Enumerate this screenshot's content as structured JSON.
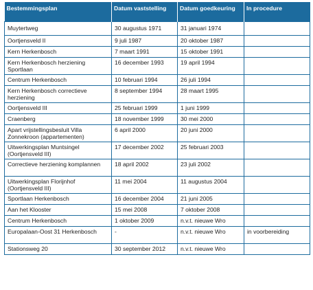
{
  "table": {
    "headers": [
      "Bestemmingsplan",
      "Datum vaststelling",
      "Datum goedkeuring",
      "In procedure"
    ],
    "rows": [
      {
        "plan": "Muytertweg",
        "vaststelling": "30 augustus 1971",
        "goedkeuring": "31 januari 1974",
        "procedure": ""
      },
      {
        "plan": "Oortjensveld II",
        "vaststelling": "9 juli 1987",
        "goedkeuring": "20 oktober 1987",
        "procedure": ""
      },
      {
        "plan": "Kern Herkenbosch",
        "vaststelling": "7 maart 1991",
        "goedkeuring": "15 oktober 1991",
        "procedure": ""
      },
      {
        "plan": "Kern Herkenbosch herziening Sportlaan",
        "vaststelling": "16 december 1993",
        "goedkeuring": "19 april 1994",
        "procedure": ""
      },
      {
        "plan": "Centrum Herkenbosch",
        "vaststelling": "10 februari 1994",
        "goedkeuring": "26 juli 1994",
        "procedure": ""
      },
      {
        "plan": "Kern Herkenbosch correctieve herziening",
        "vaststelling": "8 september 1994",
        "goedkeuring": "28 maart 1995",
        "procedure": ""
      },
      {
        "plan": "Oortjensveld III",
        "vaststelling": "25 februari 1999",
        "goedkeuring": "1 juni 1999",
        "procedure": ""
      },
      {
        "plan": "Craenberg",
        "vaststelling": "18 november 1999",
        "goedkeuring": "30 mei 2000",
        "procedure": ""
      },
      {
        "plan": "Apart vrijstellingsbesluit Villa Zonnekroon (appartementen)",
        "vaststelling": "6 april 2000",
        "goedkeuring": "20 juni 2000",
        "procedure": ""
      },
      {
        "plan": "Uitwerkingsplan Muntsingel (Oortjensveld III)",
        "vaststelling": "17 december 2002",
        "goedkeuring": "25 februari 2003",
        "procedure": ""
      },
      {
        "plan": "Correctieve herziening komplannen",
        "vaststelling": "18 april 2002",
        "goedkeuring": "23 juli 2002",
        "procedure": ""
      },
      {
        "plan": "Uitwerkingsplan Florijnhof (Oortjensveld III)",
        "vaststelling": "11 mei 2004",
        "goedkeuring": "11 augustus 2004",
        "procedure": ""
      },
      {
        "plan": "Sportlaan Herkenbosch",
        "vaststelling": "16 december 2004",
        "goedkeuring": "21 juni 2005",
        "procedure": ""
      },
      {
        "plan": "Aan het Klooster",
        "vaststelling": "15 mei 2008",
        "goedkeuring": "7 oktober 2008",
        "procedure": ""
      },
      {
        "plan": "Centrum Herkenbosch",
        "vaststelling": "1 oktober 2009",
        "goedkeuring": "n.v.t. nieuwe Wro",
        "procedure": ""
      },
      {
        "plan": "Europalaan-Oost 31 Herkenbosch",
        "vaststelling": "-",
        "goedkeuring": "n.v.t. nieuwe Wro",
        "procedure": "in voorbereiding"
      },
      {
        "plan": "Stationsweg 20",
        "vaststelling": "30 september 2012",
        "goedkeuring": "n.v.t. nieuwe Wro",
        "procedure": ""
      }
    ]
  }
}
